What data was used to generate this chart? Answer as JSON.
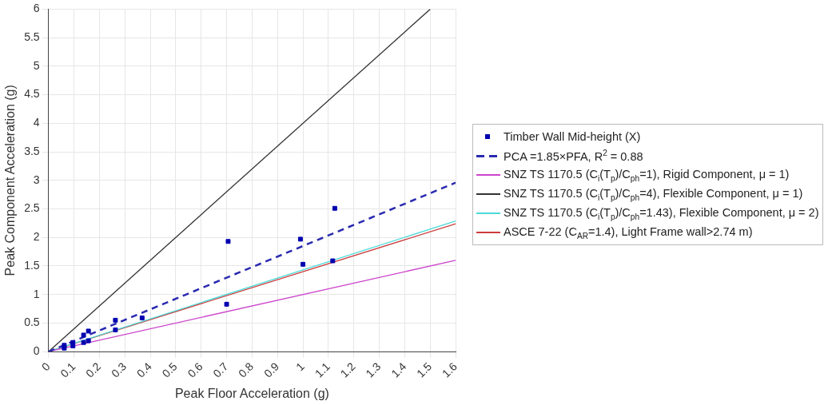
{
  "chart_data": {
    "type": "scatter",
    "xlabel": "Peak Floor Acceleration (g)",
    "ylabel": "Peak Component Acceleration (g)",
    "xlim": [
      0,
      1.6
    ],
    "xticks": [
      0,
      0.1,
      0.2,
      0.3,
      0.4,
      0.5,
      0.6,
      0.7,
      0.8,
      0.9,
      1,
      1.1,
      1.2,
      1.3,
      1.4,
      1.5,
      1.6
    ],
    "ylim": [
      0,
      6
    ],
    "yticks": [
      0,
      0.5,
      1,
      1.5,
      2,
      2.5,
      3,
      3.5,
      4,
      4.5,
      5,
      5.5,
      6
    ],
    "grid": true,
    "legend": "right",
    "marker": "square",
    "series": [
      {
        "name": "Timber Wall Mid-height (X)",
        "color": "#0000b0",
        "x": [
          0.062,
          0.062,
          0.096,
          0.096,
          0.138,
          0.138,
          0.157,
          0.157,
          0.263,
          0.263,
          0.368,
          0.7,
          0.706,
          0.99,
          1.0,
          1.117,
          1.125
        ],
        "values": [
          0.11,
          0.06,
          0.16,
          0.1,
          0.29,
          0.16,
          0.36,
          0.19,
          0.55,
          0.38,
          0.59,
          0.83,
          1.93,
          1.97,
          1.53,
          1.59,
          2.51
        ]
      },
      {
        "name": "PCA =1.85×PFA, R$^{2}$ = 0.88",
        "type": "line",
        "color": "#2a2ab0",
        "line_style": "dashed",
        "marker": "none",
        "x": [
          0,
          1.6
        ],
        "values": [
          0,
          2.96
        ]
      },
      {
        "name": "SNZ TS 1170.5 (C$_{i}$(T$_{p}$)/C$_{ph}$=1), Rigid Component, μ = 1)",
        "type": "line",
        "color": "#cc44cc",
        "line_style": "solid",
        "marker": "none",
        "x": [
          0,
          1.6
        ],
        "values": [
          0,
          1.6
        ]
      },
      {
        "name": "SNZ TS 1170.5 (C$_{i}$(T$_{p}$)/C$_{ph}$=4), Flexible Component, μ = 1)",
        "type": "line",
        "color": "#333333",
        "line_style": "solid",
        "marker": "none",
        "x": [
          0,
          1.5
        ],
        "values": [
          0,
          6
        ]
      },
      {
        "name": "SNZ TS 1170.5 (C$_{i}$(T$_{p}$)/C$_{ph}$=1.43), Flexible Component, μ = 2)",
        "type": "line",
        "color": "#4dd9d9",
        "line_style": "solid",
        "marker": "none",
        "x": [
          0,
          1.6
        ],
        "values": [
          0,
          2.29
        ]
      },
      {
        "name": "ASCE 7-22 (C$_{AR}$=1.4), Light Frame wall>2.74 m)",
        "type": "line",
        "color": "#cc3c3c",
        "line_style": "solid",
        "marker": "none",
        "x": [
          0,
          1.6
        ],
        "values": [
          0,
          2.24
        ]
      }
    ]
  }
}
